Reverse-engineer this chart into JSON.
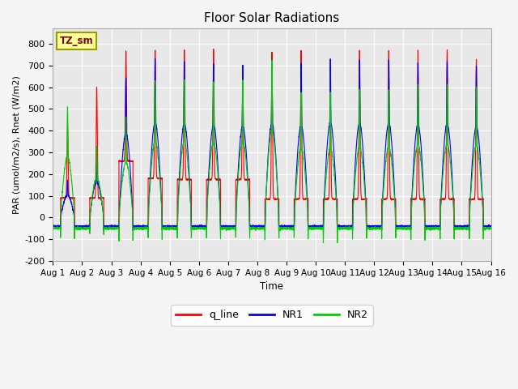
{
  "title": "Floor Solar Radiations",
  "xlabel": "Time",
  "ylabel": "PAR (umol/m2/s), Rnet (W/m2)",
  "ylim": [
    -200,
    870
  ],
  "yticks": [
    -200,
    -100,
    0,
    100,
    200,
    300,
    400,
    500,
    600,
    700,
    800
  ],
  "xtick_labels": [
    "Aug 1",
    "Aug 2",
    "Aug 3",
    "Aug 4",
    "Aug 5",
    "Aug 6",
    "Aug 7",
    "Aug 8",
    "Aug 9",
    "Aug 10",
    "Aug 11",
    "Aug 12",
    "Aug 13",
    "Aug 14",
    "Aug 15",
    "Aug 16"
  ],
  "color_qline": "#ff0000",
  "color_NR1": "#0000ff",
  "color_NR2": "#00cc00",
  "plot_bg": "#e8e8e8",
  "fig_bg": "#f5f5f5",
  "annotation_text": "TZ_sm",
  "annotation_fg": "#880000",
  "annotation_bg": "#ffff99",
  "annotation_border": "#999900",
  "legend_labels": [
    "q_line",
    "NR1",
    "NR2"
  ],
  "n_days": 15,
  "ppd": 288,
  "q_peaks": [
    430,
    600,
    770,
    770,
    770,
    770,
    640,
    760,
    770,
    560,
    770,
    770,
    770,
    770,
    730
  ],
  "q_base": [
    90,
    90,
    260,
    180,
    175,
    175,
    175,
    85,
    85,
    85,
    85,
    85,
    85,
    85,
    85
  ],
  "nr1_peaks": [
    170,
    270,
    645,
    730,
    720,
    710,
    700,
    725,
    710,
    730,
    725,
    725,
    715,
    720,
    700
  ],
  "nr2_peaks": [
    510,
    330,
    460,
    635,
    635,
    625,
    635,
    725,
    580,
    580,
    590,
    590,
    610,
    615,
    600
  ],
  "nr1_night": [
    -40,
    -40,
    -40,
    -40,
    -40,
    -40,
    -40,
    -40,
    -40,
    -40,
    -40,
    -40,
    -40,
    -40,
    -40
  ],
  "nr2_night": [
    -50,
    -50,
    -50,
    -50,
    -50,
    -50,
    -50,
    -50,
    -50,
    -50,
    -50,
    -50,
    -50,
    -50,
    -50
  ],
  "nr2_neg_spike": [
    -100,
    -80,
    -110,
    -100,
    -100,
    -100,
    -100,
    -100,
    -100,
    -120,
    -100,
    -100,
    -100,
    -100,
    -100
  ]
}
